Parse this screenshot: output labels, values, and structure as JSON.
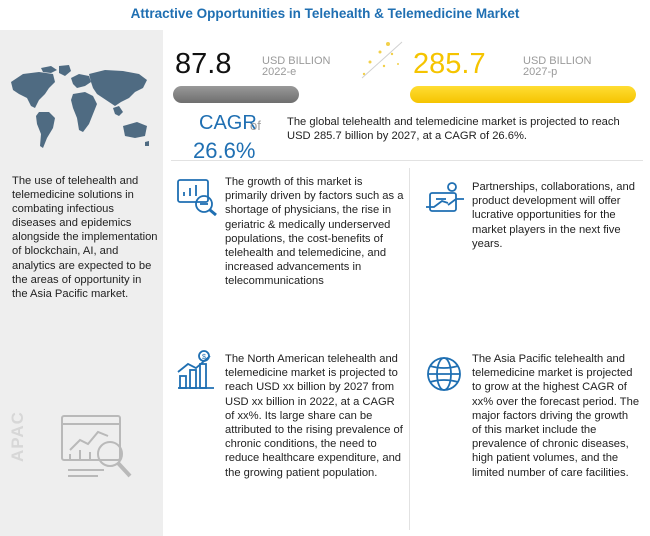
{
  "title": "Attractive Opportunities in Telehealth & Telemedicine Market",
  "stats": {
    "value_2022": "87.8",
    "unit_2022": "USD BILLION",
    "year_2022": "2022-e",
    "value_2027": "285.7",
    "unit_2027": "USD BILLION",
    "year_2027": "2027-p",
    "cagr_label": "CAGR",
    "cagr_of": "of",
    "cagr_value": "26.6%",
    "summary": "The global telehealth and telemedicine market is projected to reach USD 285.7 billion by 2027, at a CAGR of 26.6%.",
    "bar_fill_ratio_2022": 0.307
  },
  "sidebar": {
    "text": "The use of telehealth and telemedicine solutions in combating infectious diseases and epidemics alongside the implementation of blockchain, AI, and analytics are expected to be the areas of opportunity in the Asia Pacific market.",
    "region_label": "APAC"
  },
  "cards": [
    {
      "text": "The growth of this market is primarily driven by factors such as a shortage of physicians, the rise in geriatric & medically underserved populations, the cost-benefits of telehealth and telemedicine, and increased advancements in telecommunications",
      "icon": "growth-drivers-icon"
    },
    {
      "text": "Partnerships, collaborations, and product development will offer lucrative opportunities for the market players in the next five years.",
      "icon": "handshake-icon"
    },
    {
      "text": "The North American telehealth and telemedicine market is projected to reach USD xx billion by 2027 from USD xx billion in 2022, at a CAGR of xx%. Its large share can be attributed to the rising prevalence of chronic conditions, the need to reduce healthcare expenditure, and the growing patient population.",
      "icon": "bar-chart-dollar-icon"
    },
    {
      "text": "The Asia Pacific telehealth and telemedicine market is projected to grow at the highest CAGR of xx% over the forecast period. The major factors driving the growth of this market include the prevalence of chronic diseases, high patient volumes, and the limited number of care facilities.",
      "icon": "globe-icon"
    }
  ],
  "colors": {
    "accent": "#1f6fb2",
    "bar_2022": "#7a7a7a",
    "bar_2027": "#f7c800",
    "sidebar_bg": "#eeeeee"
  }
}
